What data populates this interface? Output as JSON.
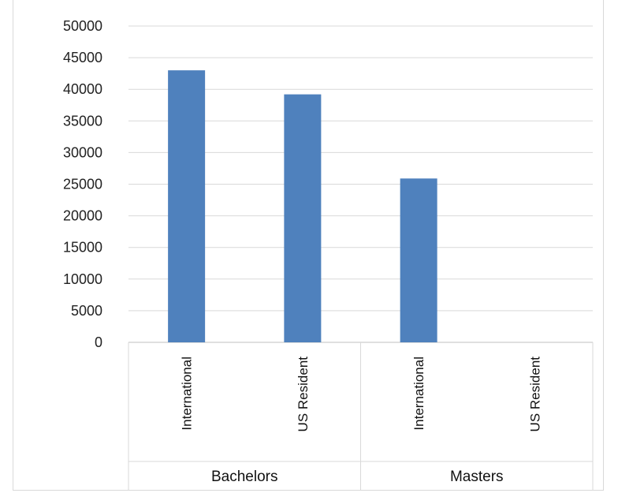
{
  "chart_data": {
    "type": "bar",
    "title": "",
    "xlabel": "",
    "ylabel": "",
    "ylim": [
      0,
      50000
    ],
    "yticks": [
      0,
      5000,
      10000,
      15000,
      20000,
      25000,
      30000,
      35000,
      40000,
      45000,
      50000
    ],
    "grid": true,
    "legend": "none",
    "bar_color": "#4f81bd",
    "groups": [
      {
        "name": "Bachelors",
        "categories": [
          {
            "label": "International",
            "value": 43000
          },
          {
            "label": "US Resident",
            "value": 39200
          }
        ]
      },
      {
        "name": "Masters",
        "categories": [
          {
            "label": "International",
            "value": 25900
          },
          {
            "label": "US Resident",
            "value": 0
          }
        ]
      }
    ]
  }
}
